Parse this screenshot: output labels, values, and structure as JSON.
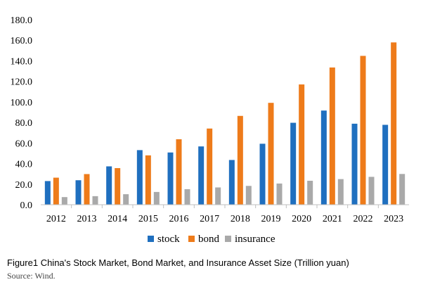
{
  "chart_data": {
    "type": "bar",
    "categories": [
      "2012",
      "2013",
      "2014",
      "2015",
      "2016",
      "2017",
      "2018",
      "2019",
      "2020",
      "2021",
      "2022",
      "2023"
    ],
    "series": [
      {
        "name": "stock",
        "color": "#1f6fbf",
        "values": [
          23.0,
          23.8,
          37.3,
          53.1,
          50.8,
          56.7,
          43.5,
          59.3,
          79.7,
          91.6,
          78.8,
          77.7
        ]
      },
      {
        "name": "bond",
        "color": "#ee7b1a",
        "values": [
          26.3,
          29.8,
          35.6,
          48.0,
          63.7,
          74.1,
          86.4,
          99.1,
          117.0,
          133.5,
          144.8,
          157.9
        ]
      },
      {
        "name": "insurance",
        "color": "#a9a9a9",
        "values": [
          7.4,
          8.3,
          10.2,
          12.4,
          15.1,
          16.8,
          18.3,
          20.6,
          23.3,
          24.9,
          27.1,
          29.9
        ]
      }
    ],
    "yticks": [
      "0.0",
      "20.0",
      "40.0",
      "60.0",
      "80.0",
      "100.0",
      "120.0",
      "140.0",
      "160.0",
      "180.0"
    ],
    "ylim": [
      0,
      180
    ],
    "legend_position": "bottom-center",
    "title": "",
    "xlabel": "",
    "ylabel": ""
  },
  "caption": "Figure1 China's Stock Market, Bond Market, and Insurance Asset Size (Trillion yuan)",
  "source": "Source: Wind."
}
